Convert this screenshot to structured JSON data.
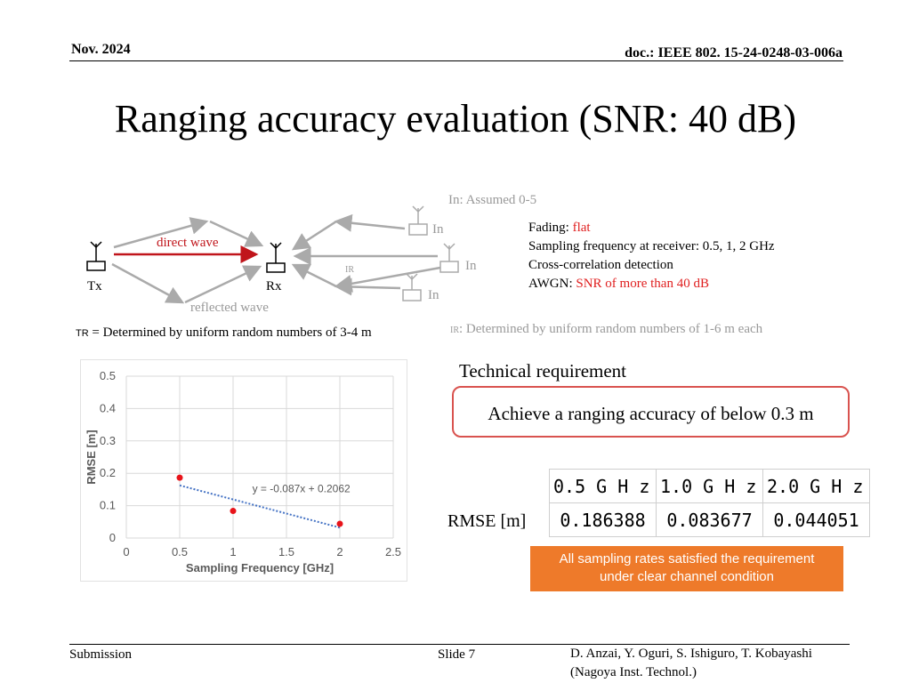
{
  "header": {
    "date": "Nov. 2024",
    "doc": "doc.: IEEE 802. 15-24-0248-03-006a"
  },
  "title": "Ranging accuracy evaluation (SNR: 40 dB)",
  "diagram": {
    "in_assumed": "In: Assumed 0-5",
    "in_label": "In",
    "direct_wave": "direct wave",
    "reflected_wave": "reflected wave",
    "tx": "Tx",
    "rx": "Rx",
    "ir": "IR",
    "tr_note_sub": "TR",
    "tr_note": "= Determined by uniform random numbers of 3-4 m",
    "ir_note_sub": "IR",
    "ir_note": ": Determined by uniform random numbers of 1-6 m each",
    "colors": {
      "direct": "#c0151b",
      "grey": "#aaaaaa"
    }
  },
  "params": {
    "fading_label": "Fading: ",
    "fading_value": "flat",
    "sampling": "Sampling frequency at receiver: 0.5, 1, 2 GHz",
    "detection": "Cross-correlation detection",
    "awgn_label": "AWGN: ",
    "awgn_value": "SNR of more than 40 dB"
  },
  "requirement": {
    "heading": "Technical requirement",
    "text": "Achieve a ranging accuracy of below 0.3 m"
  },
  "rmse_table": {
    "row_label": "RMSE [m]",
    "headers": [
      "0.5 G H z",
      "1.0 G H z",
      "2.0 G H z"
    ],
    "values": [
      "0.186388",
      "0.083677",
      "0.044051"
    ]
  },
  "note": {
    "line1": "All sampling rates satisfied the requirement",
    "line2": "under clear channel condition"
  },
  "chart_data": {
    "type": "scatter",
    "x": [
      0.5,
      1,
      2
    ],
    "y": [
      0.186388,
      0.083677,
      0.044051
    ],
    "xlabel": "Sampling Frequency [GHz]",
    "ylabel": "RMSE [m]",
    "xlim": [
      0,
      2.5
    ],
    "ylim": [
      0,
      0.5
    ],
    "xticks": [
      "0",
      "0.5",
      "1",
      "1.5",
      "2",
      "2.5"
    ],
    "yticks": [
      "0",
      "0.1",
      "0.2",
      "0.3",
      "0.4",
      "0.5"
    ],
    "trendline": {
      "slope": -0.087,
      "intercept": 0.2062,
      "label": "y = -0.087x + 0.2062"
    },
    "grid": true,
    "colors": {
      "points": "#e8141a",
      "trend": "#4472c4"
    }
  },
  "footer": {
    "left": "Submission",
    "center": "Slide 7",
    "right1": "D. Anzai, Y. Oguri, S. Ishiguro,  T. Kobayashi",
    "right2": "(Nagoya Inst. Technol.)"
  }
}
